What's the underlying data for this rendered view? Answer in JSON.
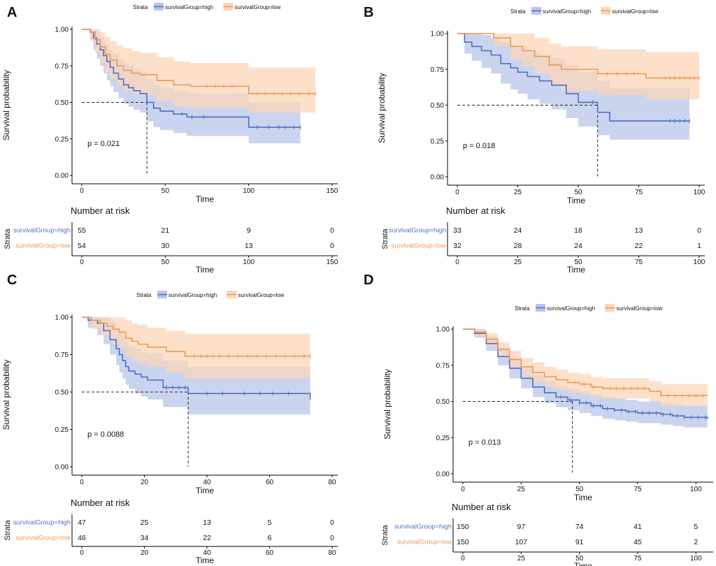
{
  "colors": {
    "high": "#4e6fbf",
    "low": "#ec9a55",
    "high_band": "#b8c5ea",
    "low_band": "#fbd6b8",
    "axis": "#000000",
    "text": "#111111"
  },
  "common": {
    "strata_title": "Strata",
    "legend_high": "survivalGroup=high",
    "legend_low": "survivalGroup=low",
    "ylabel": "Survival probability",
    "xlabel": "Time",
    "risk_title": "Number at risk",
    "risk_ylabel": "Strata",
    "y_ticks": [
      "0.00",
      "0.25",
      "0.50",
      "0.75",
      "1.00"
    ]
  },
  "chart_data": [
    {
      "type": "line",
      "panel": "A",
      "xlim": [
        0,
        150
      ],
      "ylim": [
        0,
        1
      ],
      "x_ticks": [
        0,
        50,
        100,
        150
      ],
      "median_time": 39,
      "pvalue_text": "p = 0.021",
      "series": [
        {
          "name": "survivalGroup=high",
          "x": [
            0,
            5,
            7,
            9,
            11,
            13,
            15,
            17,
            19,
            22,
            25,
            28,
            31,
            35,
            39,
            43,
            47,
            55,
            63,
            73,
            100,
            131
          ],
          "y": [
            1.0,
            0.98,
            0.94,
            0.9,
            0.86,
            0.82,
            0.78,
            0.74,
            0.7,
            0.66,
            0.62,
            0.6,
            0.58,
            0.56,
            0.5,
            0.46,
            0.44,
            0.42,
            0.4,
            0.4,
            0.33,
            0.33
          ],
          "upper": [
            1.0,
            1.0,
            1.0,
            0.98,
            0.95,
            0.92,
            0.89,
            0.86,
            0.83,
            0.8,
            0.77,
            0.75,
            0.73,
            0.71,
            0.66,
            0.62,
            0.6,
            0.58,
            0.56,
            0.56,
            0.5,
            0.5
          ],
          "lower": [
            1.0,
            0.93,
            0.86,
            0.8,
            0.75,
            0.7,
            0.65,
            0.61,
            0.57,
            0.53,
            0.49,
            0.47,
            0.45,
            0.43,
            0.37,
            0.33,
            0.31,
            0.29,
            0.27,
            0.27,
            0.22,
            0.22
          ],
          "censor": [
            60,
            66,
            73,
            105,
            112,
            118,
            122,
            127,
            131
          ]
        },
        {
          "name": "survivalGroup=low",
          "x": [
            0,
            5,
            8,
            11,
            14,
            17,
            21,
            25,
            30,
            35,
            45,
            55,
            65,
            100,
            140
          ],
          "y": [
            1.0,
            0.98,
            0.93,
            0.88,
            0.83,
            0.79,
            0.75,
            0.72,
            0.7,
            0.69,
            0.65,
            0.62,
            0.61,
            0.56,
            0.56
          ],
          "upper": [
            1.0,
            1.0,
            1.0,
            0.98,
            0.95,
            0.92,
            0.89,
            0.87,
            0.85,
            0.84,
            0.81,
            0.78,
            0.77,
            0.74,
            0.74
          ],
          "lower": [
            1.0,
            0.92,
            0.84,
            0.77,
            0.71,
            0.66,
            0.62,
            0.58,
            0.56,
            0.55,
            0.51,
            0.47,
            0.46,
            0.43,
            0.43
          ],
          "censor": [
            75,
            80,
            85,
            90,
            105,
            110,
            115,
            120,
            125,
            130,
            136,
            140
          ]
        }
      ],
      "risk": {
        "ticks": [
          0,
          50,
          100,
          150
        ],
        "high": [
          "55",
          "21",
          "9",
          "0"
        ],
        "low": [
          "54",
          "30",
          "13",
          "0"
        ]
      }
    },
    {
      "type": "line",
      "panel": "B",
      "xlim": [
        0,
        100
      ],
      "ylim": [
        0,
        1
      ],
      "x_ticks": [
        0,
        25,
        50,
        75,
        100
      ],
      "median_time": 58,
      "pvalue_text": "p = 0.018",
      "series": [
        {
          "name": "survivalGroup=high",
          "x": [
            0,
            3,
            6,
            10,
            14,
            18,
            22,
            25,
            29,
            34,
            39,
            45,
            50,
            58,
            63,
            96
          ],
          "y": [
            1.0,
            0.94,
            0.91,
            0.88,
            0.85,
            0.79,
            0.76,
            0.73,
            0.7,
            0.67,
            0.64,
            0.58,
            0.52,
            0.45,
            0.39,
            0.39
          ],
          "upper": [
            1.0,
            1.0,
            1.0,
            0.99,
            0.97,
            0.94,
            0.92,
            0.9,
            0.87,
            0.85,
            0.83,
            0.78,
            0.73,
            0.67,
            0.62,
            0.62
          ],
          "lower": [
            1.0,
            0.86,
            0.81,
            0.76,
            0.72,
            0.65,
            0.61,
            0.58,
            0.54,
            0.51,
            0.47,
            0.41,
            0.35,
            0.29,
            0.26,
            0.26
          ],
          "censor": [
            56,
            88,
            90,
            92,
            94,
            96
          ]
        },
        {
          "name": "survivalGroup=low",
          "x": [
            0,
            15,
            22,
            27,
            32,
            38,
            43,
            50,
            58,
            78,
            100
          ],
          "y": [
            1.0,
            0.97,
            0.91,
            0.88,
            0.84,
            0.78,
            0.75,
            0.75,
            0.72,
            0.69,
            0.69
          ],
          "upper": [
            1.0,
            1.0,
            1.0,
            1.0,
            0.97,
            0.93,
            0.91,
            0.91,
            0.89,
            0.87,
            0.87
          ],
          "lower": [
            1.0,
            0.91,
            0.82,
            0.77,
            0.72,
            0.64,
            0.6,
            0.6,
            0.57,
            0.54,
            0.54
          ],
          "censor": [
            62,
            66,
            70,
            73,
            86,
            88,
            90,
            92,
            94,
            96,
            98,
            100
          ]
        }
      ],
      "risk": {
        "ticks": [
          0,
          25,
          50,
          75,
          100
        ],
        "high": [
          "33",
          "24",
          "18",
          "13",
          "0"
        ],
        "low": [
          "32",
          "28",
          "24",
          "22",
          "1"
        ]
      }
    },
    {
      "type": "line",
      "panel": "C",
      "xlim": [
        0,
        80
      ],
      "ylim": [
        0,
        1
      ],
      "x_ticks": [
        0,
        20,
        40,
        60,
        80
      ],
      "median_time": 34,
      "pvalue_text": "p = 0.0088",
      "series": [
        {
          "name": "survivalGroup=high",
          "x": [
            0,
            2,
            5,
            7,
            9,
            11,
            12,
            13,
            14,
            15,
            17,
            19,
            21,
            26,
            34,
            73
          ],
          "y": [
            1.0,
            0.98,
            0.96,
            0.91,
            0.85,
            0.79,
            0.75,
            0.71,
            0.67,
            0.64,
            0.62,
            0.6,
            0.58,
            0.53,
            0.49,
            0.46
          ],
          "upper": [
            1.0,
            1.0,
            1.0,
            1.0,
            0.97,
            0.93,
            0.9,
            0.87,
            0.84,
            0.81,
            0.79,
            0.77,
            0.76,
            0.71,
            0.67,
            0.64
          ],
          "lower": [
            1.0,
            0.93,
            0.88,
            0.82,
            0.75,
            0.68,
            0.63,
            0.59,
            0.55,
            0.52,
            0.49,
            0.47,
            0.45,
            0.4,
            0.35,
            0.33
          ],
          "censor": [
            27,
            29,
            31,
            33,
            40,
            45,
            52,
            57,
            61,
            66,
            73
          ]
        },
        {
          "name": "survivalGroup=low",
          "x": [
            0,
            3,
            6,
            8,
            10,
            12,
            14,
            16,
            18,
            21,
            27,
            33,
            73
          ],
          "y": [
            1.0,
            0.98,
            0.96,
            0.94,
            0.92,
            0.9,
            0.86,
            0.84,
            0.82,
            0.8,
            0.77,
            0.74,
            0.74
          ],
          "upper": [
            1.0,
            1.0,
            1.0,
            1.0,
            1.0,
            1.0,
            0.98,
            0.96,
            0.95,
            0.93,
            0.91,
            0.89,
            0.89
          ],
          "lower": [
            1.0,
            0.92,
            0.88,
            0.85,
            0.82,
            0.79,
            0.74,
            0.71,
            0.69,
            0.67,
            0.63,
            0.59,
            0.59
          ],
          "censor": [
            36,
            38,
            40,
            42,
            44,
            47,
            50,
            53,
            56,
            59,
            62,
            65,
            68,
            71,
            73
          ]
        }
      ],
      "risk": {
        "ticks": [
          0,
          20,
          40,
          60,
          80
        ],
        "high": [
          "47",
          "25",
          "13",
          "5",
          "0"
        ],
        "low": [
          "46",
          "34",
          "22",
          "6",
          "0"
        ]
      }
    },
    {
      "type": "line",
      "panel": "D",
      "xlim": [
        0,
        105
      ],
      "ylim": [
        0,
        1
      ],
      "x_ticks": [
        0,
        25,
        50,
        75,
        100
      ],
      "median_time": 47,
      "pvalue_text": "p = 0.013",
      "series": [
        {
          "name": "survivalGroup=high",
          "x": [
            0,
            5,
            10,
            15,
            20,
            25,
            30,
            35,
            40,
            45,
            50,
            55,
            60,
            65,
            70,
            75,
            80,
            85,
            90,
            95,
            105
          ],
          "y": [
            1.0,
            0.97,
            0.9,
            0.81,
            0.73,
            0.66,
            0.6,
            0.56,
            0.53,
            0.51,
            0.49,
            0.47,
            0.45,
            0.44,
            0.43,
            0.42,
            0.42,
            0.41,
            0.4,
            0.39,
            0.38
          ],
          "upper": [
            1.0,
            1.0,
            0.95,
            0.87,
            0.8,
            0.74,
            0.68,
            0.64,
            0.61,
            0.59,
            0.57,
            0.55,
            0.53,
            0.52,
            0.51,
            0.5,
            0.5,
            0.49,
            0.48,
            0.47,
            0.46
          ],
          "lower": [
            1.0,
            0.94,
            0.85,
            0.75,
            0.66,
            0.59,
            0.53,
            0.49,
            0.46,
            0.44,
            0.42,
            0.4,
            0.38,
            0.37,
            0.36,
            0.35,
            0.35,
            0.34,
            0.33,
            0.32,
            0.31
          ],
          "censor": [
            42,
            46,
            50,
            53,
            56,
            59,
            62,
            65,
            68,
            71,
            74,
            77,
            80,
            83,
            86,
            89,
            92,
            95,
            98,
            101,
            104
          ]
        },
        {
          "name": "survivalGroup=low",
          "x": [
            0,
            5,
            10,
            15,
            20,
            25,
            30,
            35,
            40,
            45,
            50,
            55,
            60,
            80,
            85,
            105
          ],
          "y": [
            1.0,
            0.98,
            0.93,
            0.86,
            0.79,
            0.74,
            0.7,
            0.67,
            0.65,
            0.63,
            0.62,
            0.6,
            0.59,
            0.57,
            0.54,
            0.54
          ],
          "upper": [
            1.0,
            1.0,
            0.97,
            0.91,
            0.85,
            0.8,
            0.77,
            0.74,
            0.72,
            0.7,
            0.69,
            0.67,
            0.66,
            0.64,
            0.62,
            0.62
          ],
          "lower": [
            1.0,
            0.95,
            0.88,
            0.8,
            0.73,
            0.67,
            0.63,
            0.6,
            0.58,
            0.56,
            0.55,
            0.53,
            0.52,
            0.5,
            0.47,
            0.47
          ],
          "censor": [
            48,
            52,
            56,
            60,
            63,
            66,
            69,
            72,
            75,
            78,
            88,
            91,
            94,
            97,
            100,
            103
          ]
        }
      ],
      "risk": {
        "ticks": [
          0,
          25,
          50,
          75,
          100
        ],
        "high": [
          "150",
          "97",
          "74",
          "41",
          "5"
        ],
        "low": [
          "150",
          "107",
          "91",
          "45",
          "2"
        ]
      }
    }
  ]
}
